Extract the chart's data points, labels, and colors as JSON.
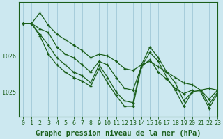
{
  "background_color": "#cce8f0",
  "plot_bg_color": "#cce8f0",
  "grid_color": "#a0c8d8",
  "line_color": "#1a5e1a",
  "xlabel": "Graphe pression niveau de la mer (hPa)",
  "xlabel_fontsize": 7.5,
  "tick_fontsize": 6,
  "xlim": [
    -0.5,
    23
  ],
  "ylim": [
    1024.3,
    1027.5
  ],
  "yticks": [
    1025,
    1026
  ],
  "xticks": [
    0,
    1,
    2,
    3,
    4,
    5,
    6,
    7,
    8,
    9,
    10,
    11,
    12,
    13,
    14,
    15,
    16,
    17,
    18,
    19,
    20,
    21,
    22,
    23
  ],
  "series": [
    [
      1026.9,
      1026.9,
      1027.2,
      1026.85,
      1026.6,
      1026.45,
      1026.3,
      1026.15,
      1025.95,
      1026.05,
      1026.0,
      1025.85,
      1025.65,
      1025.6,
      1025.75,
      1025.85,
      1025.7,
      1025.55,
      1025.4,
      1025.25,
      1025.2,
      1025.05,
      1025.1,
      1025.05
    ],
    [
      1026.9,
      1026.9,
      1026.75,
      1026.65,
      1026.25,
      1026.05,
      1025.95,
      1025.75,
      1025.55,
      1025.85,
      1025.75,
      1025.4,
      1025.1,
      1025.05,
      1025.7,
      1025.9,
      1025.55,
      1025.35,
      1025.1,
      1024.95,
      1025.05,
      1025.05,
      1024.8,
      1025.05
    ],
    [
      1026.9,
      1026.9,
      1026.6,
      1026.3,
      1025.95,
      1025.75,
      1025.55,
      1025.45,
      1025.25,
      1025.75,
      1025.4,
      1025.0,
      1024.75,
      1024.7,
      1025.75,
      1026.25,
      1025.95,
      1025.55,
      1025.25,
      1024.75,
      1025.0,
      1025.05,
      1024.65,
      1025.0
    ],
    [
      1026.9,
      1026.9,
      1026.55,
      1026.05,
      1025.75,
      1025.55,
      1025.4,
      1025.3,
      1025.15,
      1025.65,
      1025.25,
      1024.9,
      1024.6,
      1024.6,
      1025.7,
      1026.1,
      1025.85,
      1025.4,
      1025.05,
      1024.6,
      1025.0,
      1025.0,
      1024.55,
      1024.95
    ]
  ]
}
